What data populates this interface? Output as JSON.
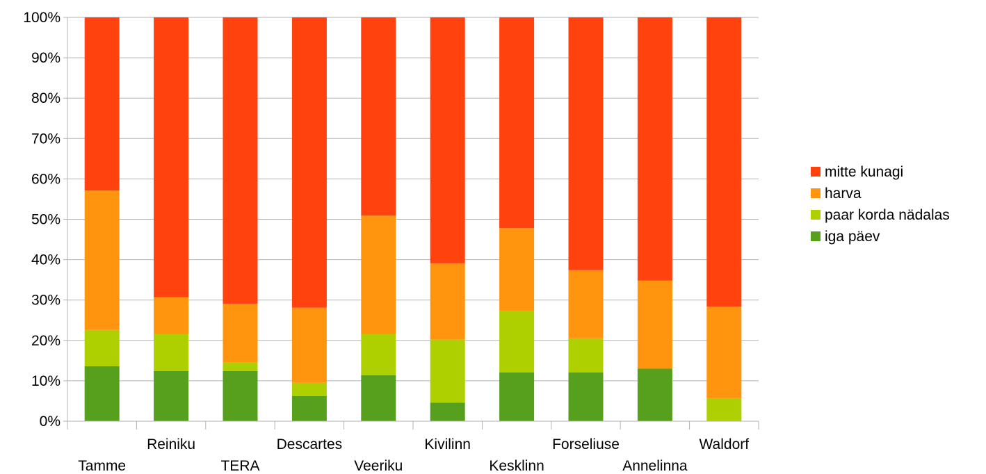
{
  "chart_data": {
    "type": "bar",
    "stacked": true,
    "normalized": true,
    "categories": [
      "Tamme",
      "Reiniku",
      "TERA",
      "Descartes",
      "Veeriku",
      "Kivilinn",
      "Kesklinn",
      "Forseliuse",
      "Annelinna",
      "Waldorf"
    ],
    "series": [
      {
        "name": "iga päev",
        "color": "#56a01e",
        "values": [
          13.6,
          12.4,
          12.4,
          6.2,
          11.4,
          4.6,
          12.1,
          12.1,
          13.0,
          0
        ]
      },
      {
        "name": "paar korda nädalas",
        "color": "#aecf00",
        "values": [
          9.0,
          9.2,
          2.1,
          3.3,
          10.2,
          15.6,
          15.2,
          8.4,
          0,
          5.7
        ]
      },
      {
        "name": "harva",
        "color": "#ff950e",
        "values": [
          34.5,
          9.1,
          14.6,
          18.6,
          29.3,
          18.9,
          20.5,
          16.9,
          21.8,
          22.7
        ]
      },
      {
        "name": "mitte kunagi",
        "color": "#ff420e",
        "values": [
          42.9,
          69.3,
          70.9,
          71.9,
          49.1,
          60.9,
          52.2,
          62.6,
          65.2,
          71.6
        ]
      }
    ],
    "y_ticks": [
      "0%",
      "10%",
      "20%",
      "30%",
      "40%",
      "50%",
      "60%",
      "70%",
      "80%",
      "90%",
      "100%"
    ],
    "ylim": [
      0,
      100
    ],
    "grid": true,
    "legend_position": "right",
    "legend_order": [
      "mitte kunagi",
      "harva",
      "paar korda nädalas",
      "iga päev"
    ]
  }
}
